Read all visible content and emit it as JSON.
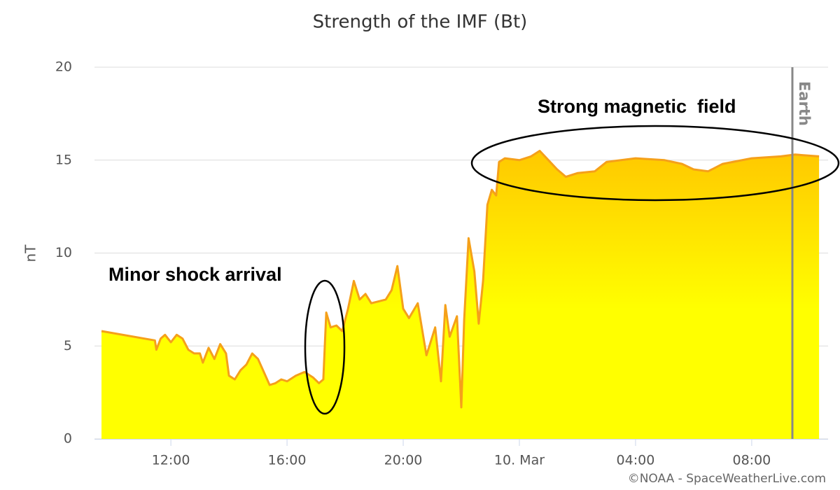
{
  "chart_data": {
    "type": "area",
    "title": "Strength of the IMF (Bt)",
    "y_label": "nT",
    "color": "#f5a01a",
    "fill_color": "#ffff00",
    "fill_top_color": "#ffc800",
    "grid": true,
    "xlim": [
      9.37,
      34.63
    ],
    "ylim": [
      0,
      20
    ],
    "yticks": [
      0,
      5,
      10,
      15,
      20
    ],
    "xticks": [
      {
        "value": 12,
        "label": "12:00"
      },
      {
        "value": 16,
        "label": "16:00"
      },
      {
        "value": 20,
        "label": "20:00"
      },
      {
        "value": 24,
        "label": "10. Mar"
      },
      {
        "value": 28,
        "label": "04:00"
      },
      {
        "value": 32,
        "label": "08:00"
      }
    ],
    "x": [
      9.61,
      11.45,
      11.5,
      11.65,
      11.8,
      12.0,
      12.2,
      12.4,
      12.6,
      12.8,
      13.0,
      13.1,
      13.3,
      13.5,
      13.7,
      13.9,
      14.0,
      14.2,
      14.4,
      14.6,
      14.8,
      15.0,
      15.2,
      15.4,
      15.6,
      15.8,
      16.0,
      16.3,
      16.6,
      16.9,
      17.1,
      17.25,
      17.35,
      17.5,
      17.7,
      17.9,
      18.1,
      18.3,
      18.5,
      18.7,
      18.9,
      19.4,
      19.6,
      19.8,
      20.0,
      20.2,
      20.5,
      20.8,
      20.9,
      21.1,
      21.3,
      21.45,
      21.6,
      21.85,
      22.0,
      22.1,
      22.25,
      22.45,
      22.6,
      22.75,
      22.9,
      23.05,
      23.2,
      23.3,
      23.5,
      24.0,
      24.4,
      24.7,
      25.0,
      25.3,
      25.6,
      26.0,
      26.6,
      27.0,
      28.0,
      29.0,
      29.6,
      30.0,
      30.5,
      31.0,
      32.0,
      33.0,
      33.5,
      34.32
    ],
    "values": [
      5.8,
      5.3,
      4.8,
      5.4,
      5.6,
      5.2,
      5.6,
      5.4,
      4.8,
      4.6,
      4.6,
      4.1,
      4.9,
      4.3,
      5.1,
      4.6,
      3.4,
      3.2,
      3.7,
      4.0,
      4.6,
      4.3,
      3.6,
      2.9,
      3.0,
      3.2,
      3.1,
      3.4,
      3.6,
      3.3,
      3.0,
      3.2,
      6.8,
      6.0,
      6.1,
      5.8,
      7.0,
      8.5,
      7.5,
      7.8,
      7.3,
      7.5,
      8.0,
      9.3,
      7.0,
      6.5,
      7.3,
      4.5,
      5.0,
      6.0,
      3.1,
      7.2,
      5.5,
      6.6,
      1.7,
      6.4,
      10.8,
      9.0,
      6.2,
      8.5,
      12.6,
      13.4,
      13.1,
      14.9,
      15.1,
      15.0,
      15.2,
      15.5,
      15.0,
      14.5,
      14.1,
      14.3,
      14.4,
      14.9,
      15.1,
      15.0,
      14.8,
      14.5,
      14.4,
      14.8,
      15.1,
      15.2,
      15.3,
      15.2
    ],
    "earth_marker": {
      "x": 33.4,
      "label": "Earth"
    },
    "annotations": [
      "Minor shock arrival",
      "Strong magnetic  field"
    ],
    "credit": "©NOAA - SpaceWeatherLive.com"
  }
}
